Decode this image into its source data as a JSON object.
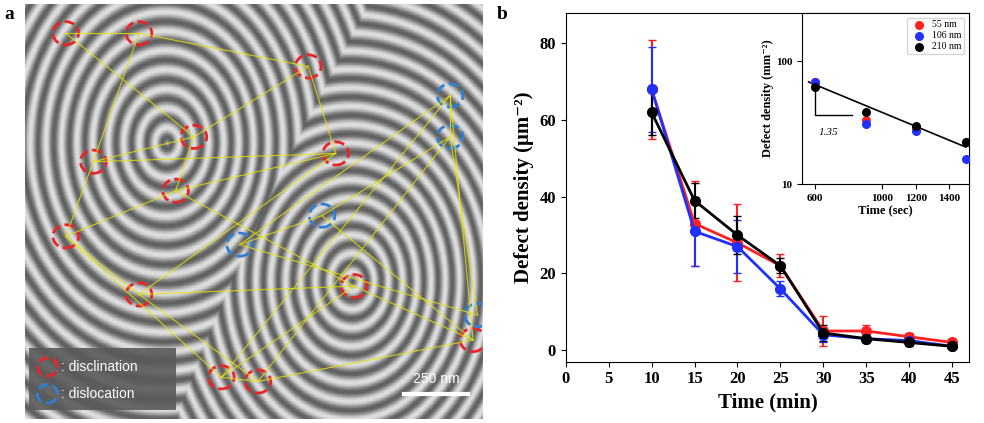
{
  "image_panel": {
    "panel_label": "a",
    "markers": [
      {
        "label": ": disclination",
        "color": "#e8262a"
      },
      {
        "label": ": dislocation",
        "color": "#2f7fd6"
      }
    ],
    "scale_bar": "250 nm"
  },
  "chart_data": [
    {
      "type": "line",
      "panel_label": "b",
      "x_label": "Time (min)",
      "y_label": "Defect density (μm⁻²)",
      "x": [
        10,
        15,
        20,
        25,
        30,
        35,
        40,
        45
      ],
      "xlim": [
        0,
        47
      ],
      "xticks": [
        0,
        5,
        10,
        15,
        20,
        25,
        30,
        35,
        40,
        45
      ],
      "ylim": [
        -3,
        88
      ],
      "yticks": [
        0,
        20,
        40,
        60,
        80
      ],
      "marker": "circle",
      "series": [
        {
          "name": "55 nm",
          "color": "#ff2020",
          "values": [
            68,
            33,
            28,
            22,
            5,
            5,
            3.5,
            2
          ],
          "errors": [
            13,
            11,
            10,
            3,
            4,
            1.5,
            1,
            0.8
          ]
        },
        {
          "name": "106 nm",
          "color": "#2030ff",
          "values": [
            68,
            31,
            27,
            16,
            4,
            3,
            2.5,
            1
          ],
          "errors": [
            11,
            9,
            7,
            2,
            2,
            1,
            1,
            0.5
          ]
        },
        {
          "name": "210 nm",
          "color": "#000000",
          "values": [
            62,
            39,
            30,
            22,
            4.5,
            3,
            2,
            1
          ],
          "errors": [
            6,
            4.5,
            5,
            2,
            2,
            1,
            1,
            0.5
          ]
        }
      ]
    },
    {
      "type": "scatter",
      "x_label": "Time (sec)",
      "y_label": "Defect density (mm⁻²)",
      "log": "y",
      "xlim": [
        520,
        1520
      ],
      "xticks": [
        600,
        1000,
        1200,
        1400
      ],
      "ylim": [
        10,
        250
      ],
      "yticks": [
        10,
        100
      ],
      "legend": "upper right",
      "annotations": [
        "1.35"
      ],
      "marker": "circle",
      "series": [
        {
          "name": "55 nm",
          "color": "#ff2020",
          "x": [
            600,
            900,
            1200,
            1500
          ],
          "values": [
            68,
            33,
            28,
            22
          ]
        },
        {
          "name": "106 nm",
          "color": "#2030ff",
          "x": [
            600,
            900,
            1200,
            1500
          ],
          "values": [
            68,
            31,
            27,
            16
          ]
        },
        {
          "name": "210 nm",
          "color": "#000000",
          "x": [
            600,
            900,
            1200,
            1500
          ],
          "values": [
            62,
            39,
            30,
            22
          ]
        },
        {
          "type": "line",
          "color": "#000000",
          "x": [
            560,
            1500
          ],
          "values": [
            68,
            20
          ]
        }
      ]
    }
  ]
}
